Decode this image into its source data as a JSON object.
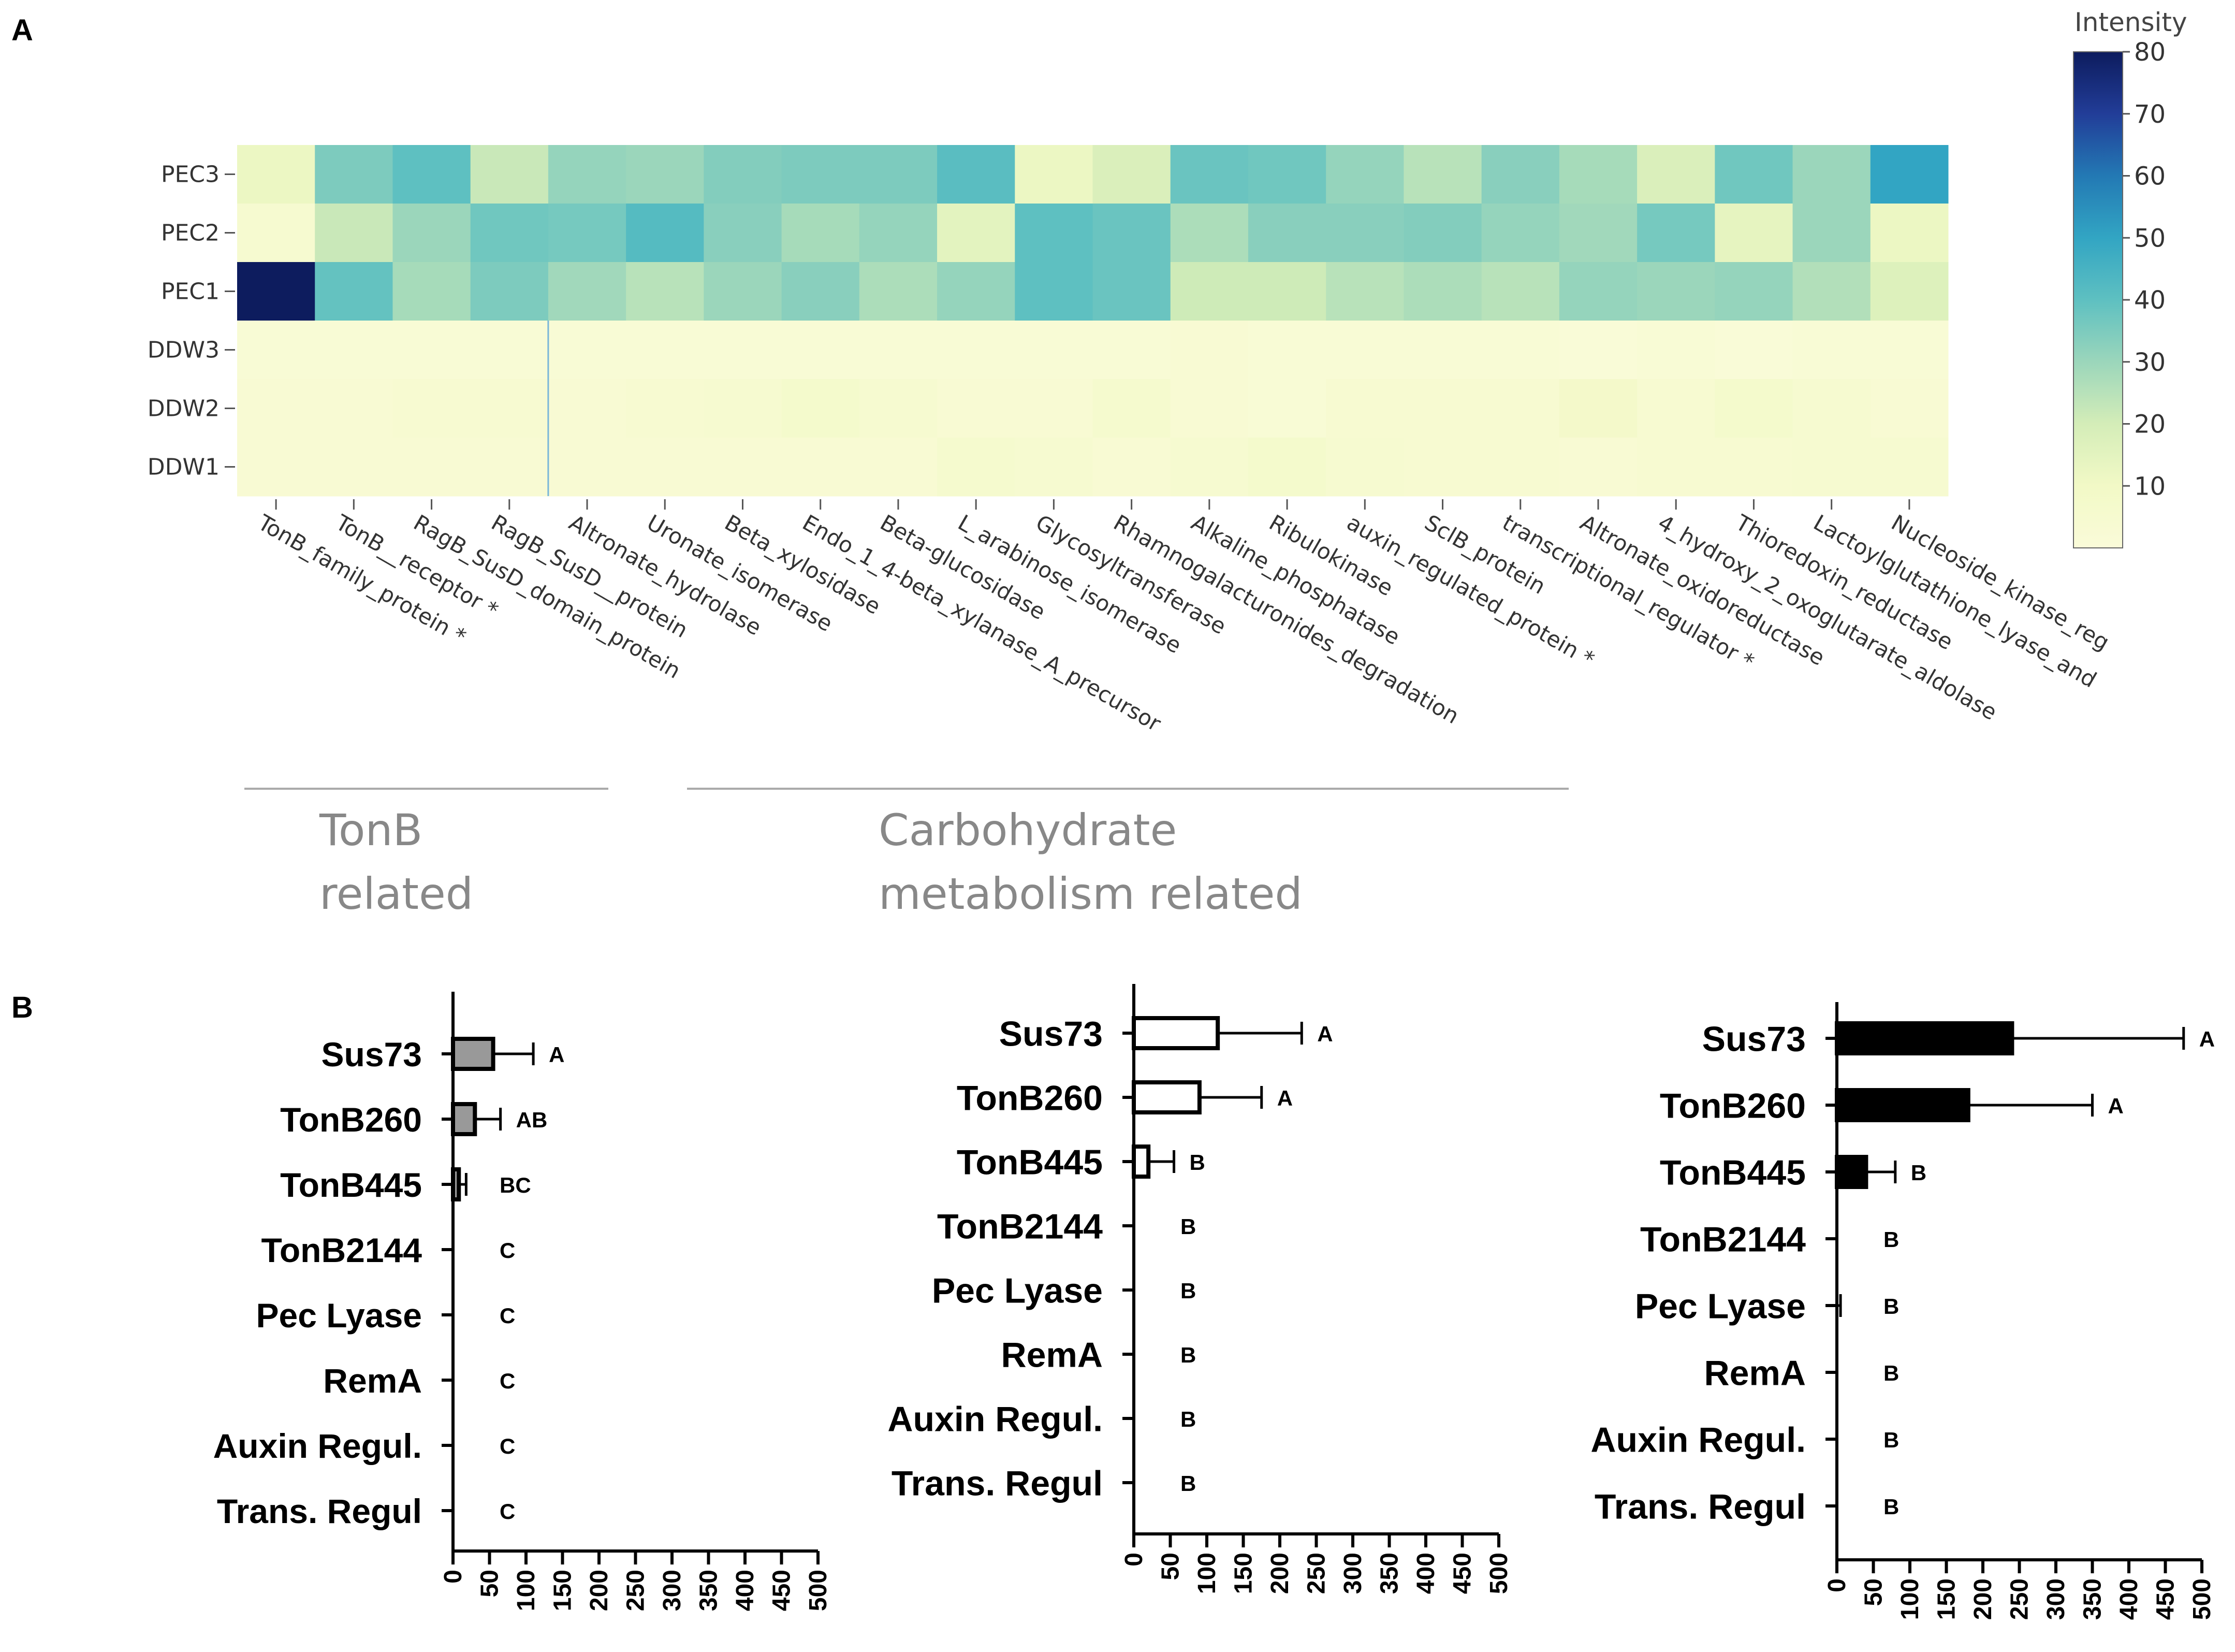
{
  "panel_labels": [
    "A",
    "B"
  ],
  "chart_data": [
    {
      "type": "heatmap",
      "title": "",
      "colorbar": {
        "title": "Intensity",
        "min": 0,
        "max": 80,
        "ticks": [
          10,
          20,
          30,
          40,
          50,
          60,
          70,
          80
        ]
      },
      "rows": [
        "PEC3",
        "PEC2",
        "PEC1",
        "DDW3",
        "DDW2",
        "DDW1"
      ],
      "columns": [
        "TonB_family_protein *",
        "TonB__receptor *",
        "RagB_SusD_domain_protein",
        "RagB_SusD__protein",
        "Altronate_hydrolase",
        "Uronate_isomerase",
        "Beta_xylosidase",
        "Endo_1_4-beta_xylanase_A_precursor",
        "Beta-glucosidase",
        "L_arabinose_isomerase",
        "Glycosyltransferase",
        "Rhamnogalacturonides_degradation",
        "Alkaline_phosphatase",
        "Ribulokinase",
        "auxin_regulated_protein *",
        "SclB_protein",
        "transcriptional_regulator *",
        "Altronate_oxidoreductase",
        "4_hydroxy_2_oxoglutarate_aldolase",
        "Thioredoxin_reductase",
        "Lactoylglutathione_lyase_and",
        "Nucleoside_kinase_reg"
      ],
      "values": [
        [
          12,
          35,
          40,
          22,
          31,
          30,
          34,
          35,
          35,
          41,
          12,
          18,
          38,
          37,
          31,
          25,
          33,
          28,
          18,
          37,
          30,
          50
        ],
        [
          5,
          22,
          30,
          37,
          36,
          42,
          33,
          28,
          31,
          15,
          40,
          38,
          27,
          33,
          33,
          34,
          31,
          29,
          36,
          14,
          30,
          12
        ],
        [
          80,
          39,
          28,
          35,
          29,
          25,
          30,
          33,
          27,
          31,
          40,
          38,
          21,
          21,
          25,
          27,
          25,
          31,
          30,
          31,
          26,
          17
        ],
        [
          2,
          2,
          2,
          2,
          2,
          2,
          2,
          2,
          2,
          2,
          2,
          2,
          3,
          2,
          2,
          2,
          2,
          1,
          2,
          1,
          2,
          2
        ],
        [
          3,
          3,
          4,
          4,
          3,
          4,
          5,
          7,
          5,
          3,
          3,
          6,
          3,
          2,
          4,
          4,
          4,
          8,
          4,
          7,
          5,
          3
        ],
        [
          3,
          3,
          3,
          3,
          3,
          3,
          3,
          3,
          3,
          6,
          5,
          3,
          5,
          7,
          5,
          4,
          4,
          3,
          4,
          4,
          5,
          5
        ]
      ],
      "groups": [
        {
          "label_lines": [
            "TonB",
            "related"
          ]
        },
        {
          "label_lines": [
            "Carbohydrate",
            "metabolism related"
          ]
        }
      ]
    },
    {
      "type": "bar",
      "orientation": "horizontal",
      "fill": "gray",
      "categories": [
        "Sus73",
        "TonB260",
        "TonB445",
        "TonB2144",
        "Pec Lyase",
        "RemA",
        "Auxin Regul.",
        "Trans. Regul"
      ],
      "values": [
        55,
        30,
        8,
        0,
        0,
        0,
        0,
        0
      ],
      "errors": [
        55,
        35,
        10,
        0,
        0,
        0,
        0,
        0
      ],
      "significance": [
        "A",
        "AB",
        "BC",
        "C",
        "C",
        "C",
        "C",
        "C"
      ],
      "xlim": [
        0,
        500
      ],
      "xticks": [
        "0",
        "50",
        "100",
        "150",
        "200",
        "250",
        "300",
        "350",
        "400",
        "450",
        "500"
      ]
    },
    {
      "type": "bar",
      "orientation": "horizontal",
      "fill": "white",
      "categories": [
        "Sus73",
        "TonB260",
        "TonB445",
        "TonB2144",
        "Pec Lyase",
        "RemA",
        "Auxin Regul.",
        "Trans. Regul"
      ],
      "values": [
        115,
        90,
        20,
        0,
        0,
        0,
        0,
        0
      ],
      "errors": [
        115,
        85,
        35,
        0,
        0,
        0,
        0,
        0
      ],
      "significance": [
        "A",
        "A",
        "B",
        "B",
        "B",
        "B",
        "B",
        "B"
      ],
      "xlim": [
        0,
        500
      ],
      "xticks": [
        "0",
        "50",
        "100",
        "150",
        "200",
        "250",
        "300",
        "350",
        "400",
        "450",
        "500"
      ]
    },
    {
      "type": "bar",
      "orientation": "horizontal",
      "fill": "black",
      "categories": [
        "Sus73",
        "TonB260",
        "TonB445",
        "TonB2144",
        "Pec Lyase",
        "RemA",
        "Auxin Regul.",
        "Trans. Regul"
      ],
      "values": [
        240,
        180,
        40,
        0,
        0,
        0,
        0,
        0
      ],
      "errors": [
        235,
        170,
        40,
        0,
        5,
        0,
        0,
        0
      ],
      "significance": [
        "A",
        "A",
        "B",
        "B",
        "B",
        "B",
        "B",
        "B"
      ],
      "xlim": [
        0,
        500
      ],
      "xticks": [
        "0",
        "50",
        "100",
        "150",
        "200",
        "250",
        "300",
        "350",
        "400",
        "450",
        "500"
      ]
    }
  ]
}
